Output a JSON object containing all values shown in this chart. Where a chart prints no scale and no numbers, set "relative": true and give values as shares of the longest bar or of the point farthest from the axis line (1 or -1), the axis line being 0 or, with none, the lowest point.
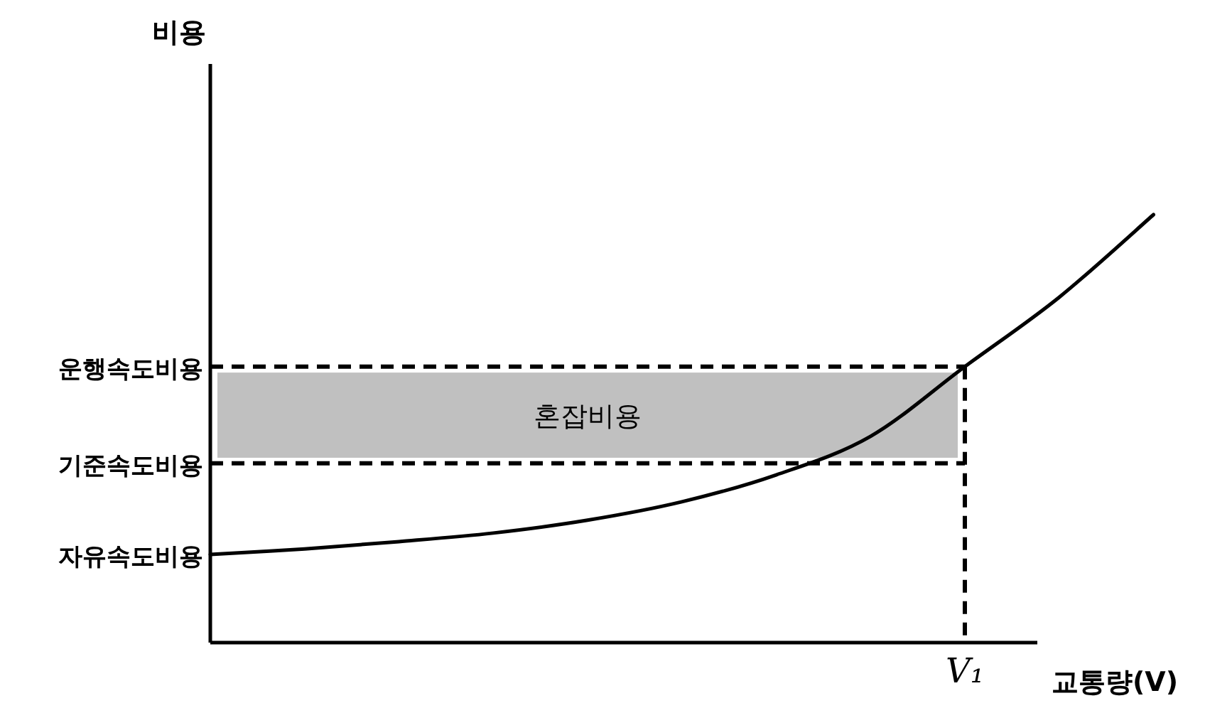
{
  "chart_data": {
    "type": "line",
    "relative": true,
    "xlabel": "교통량(V)",
    "categories": [
      null,
      null,
      null,
      null,
      null,
      null,
      null,
      null,
      null,
      null,
      null
    ],
    "series": [
      {
        "color": "#000000",
        "values": [
          0.206,
          0.219,
          0.236,
          0.256,
          0.286,
          0.329,
          0.392,
          0.482,
          0.645,
          0.807,
          1
        ]
      }
    ],
    "ref_lines": [
      {
        "axis": "y",
        "value": 0.645,
        "label": "운행속도비용",
        "line_style": "dashed",
        "color": "#000000"
      },
      {
        "axis": "y",
        "value": 0.419,
        "label": "기준속도비용",
        "line_style": "dashed",
        "color": "#000000"
      }
    ],
    "bands": [
      {
        "axis": "y",
        "from": 0.432,
        "to": 0.631,
        "label": "혼잡비용",
        "color": "#c0c0c0"
      }
    ],
    "annotations": [
      "자유속도비용",
      "V₁",
      "비용"
    ],
    "line_style": "solid",
    "marker": "none"
  }
}
